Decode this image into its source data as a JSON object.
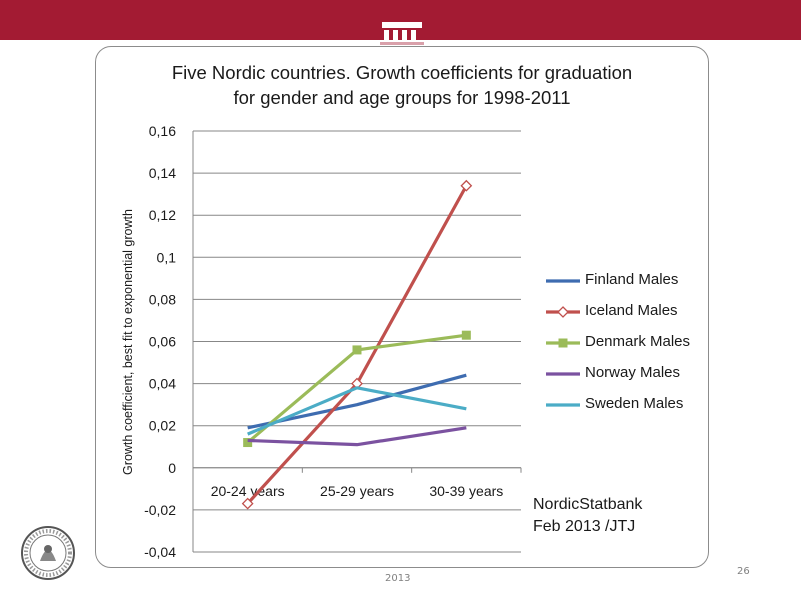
{
  "slide": {
    "source_line1": "NordicStatbank",
    "source_line2": "Feb 2013 /JTJ",
    "footer_year": "2013",
    "page_number": "26",
    "brand_color": "#a31b33"
  },
  "chart_data": {
    "type": "line",
    "title_line1": "Five Nordic countries.  Growth coefficients for graduation",
    "title_line2": "for gender and age groups for 1998-2011",
    "xlabel": "",
    "ylabel": "Growth coefficient, best fit to exponential growth",
    "categories": [
      "20-24 years",
      "25-29 years",
      "30-39 years"
    ],
    "ylim": [
      -0.04,
      0.16
    ],
    "yticks": [
      "0,16",
      "0,14",
      "0,12",
      "0,1",
      "0,08",
      "0,06",
      "0,04",
      "0,02",
      "0",
      "-0,02",
      "-0,04"
    ],
    "ytick_values": [
      0.16,
      0.14,
      0.12,
      0.1,
      0.08,
      0.06,
      0.04,
      0.02,
      0,
      -0.02,
      -0.04
    ],
    "grid": true,
    "legend_position": "right",
    "series": [
      {
        "name": "Finland Males",
        "values": [
          0.019,
          0.03,
          0.044
        ],
        "color": "#3e6cb0",
        "marker": "none"
      },
      {
        "name": "Iceland Males",
        "values": [
          -0.017,
          0.04,
          0.134
        ],
        "color": "#c0504d",
        "marker": "diamond"
      },
      {
        "name": "Denmark Males",
        "values": [
          0.012,
          0.056,
          0.063
        ],
        "color": "#9bbb59",
        "marker": "square"
      },
      {
        "name": "Norway Males",
        "values": [
          0.013,
          0.011,
          0.019
        ],
        "color": "#7b52a0",
        "marker": "none"
      },
      {
        "name": "Sweden Males",
        "values": [
          0.016,
          0.038,
          0.028
        ],
        "color": "#4bacc6",
        "marker": "none"
      }
    ]
  }
}
